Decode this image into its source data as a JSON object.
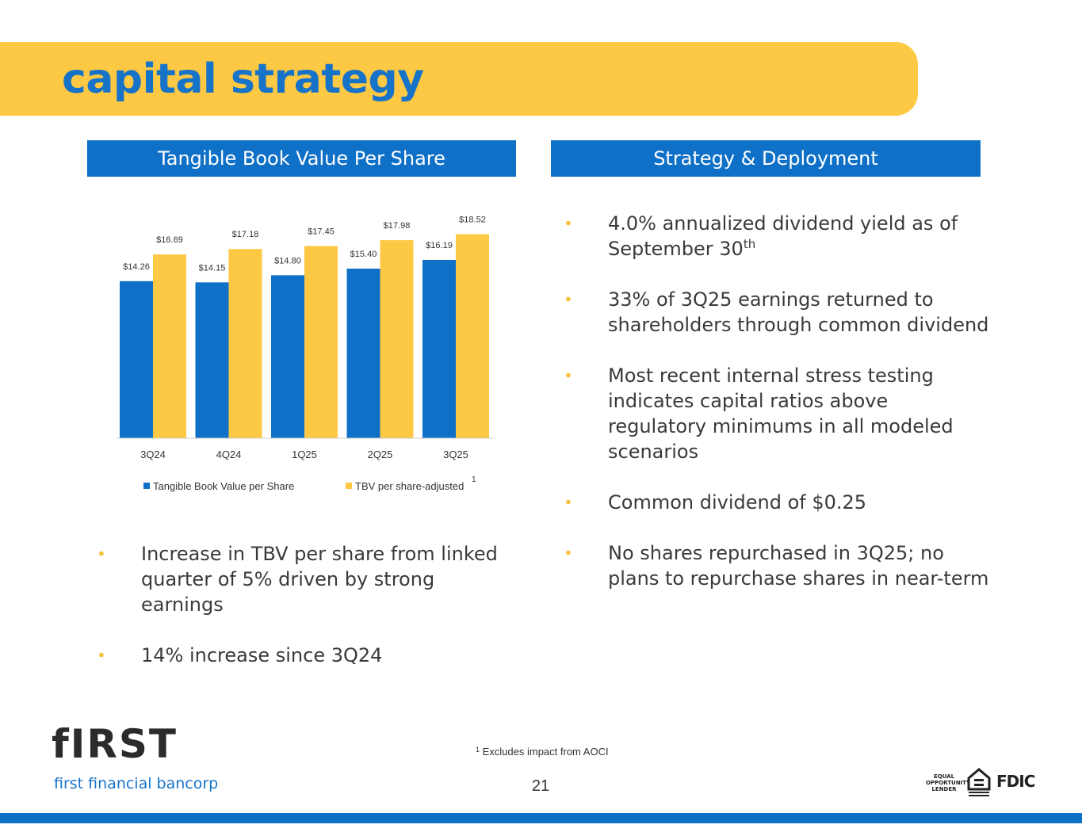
{
  "title": "capital strategy",
  "left_header": "Tangible Book Value Per Share",
  "right_header": "Strategy & Deployment",
  "colors": {
    "blue": "#0F70C8",
    "yellow": "#FDC843",
    "bullet": "#F5C242"
  },
  "chart_data": {
    "type": "bar",
    "categories": [
      "3Q24",
      "4Q24",
      "1Q25",
      "2Q25",
      "3Q25"
    ],
    "series": [
      {
        "name": "Tangible Book Value per Share",
        "values": [
          14.26,
          14.15,
          14.8,
          15.4,
          16.19
        ],
        "labels": [
          "$14.26",
          "$14.15",
          "$14.80",
          "$15.40",
          "$16.19"
        ],
        "color": "#0F70C8"
      },
      {
        "name": "TBV per share-adjusted",
        "values": [
          16.69,
          17.18,
          17.45,
          17.98,
          18.52
        ],
        "labels": [
          "$16.69",
          "$17.18",
          "$17.45",
          "$17.98",
          "$18.52"
        ],
        "color": "#FDC843"
      }
    ],
    "legend_note": "1",
    "legend_position": "bottom",
    "ylim": [
      0,
      19.5
    ],
    "grid": false
  },
  "right_bullets": [
    {
      "text": "4.0% annualized dividend yield as of September 30",
      "sup": "th"
    },
    {
      "text": "33% of 3Q25 earnings returned to shareholders through common dividend"
    },
    {
      "text": "Most recent internal stress testing indicates capital ratios above regulatory minimums in all modeled scenarios"
    },
    {
      "text": "Common dividend of $0.25"
    },
    {
      "text": "No shares repurchased in 3Q25; no plans to repurchase shares in near-term"
    }
  ],
  "left_bullets": [
    {
      "text": "Increase in TBV per share from linked quarter of 5% driven by strong earnings"
    },
    {
      "text": "14% increase since 3Q24"
    }
  ],
  "bullet_glyph": "•",
  "footnote": {
    "marker": "1",
    "text": " Excludes impact from AOCI"
  },
  "page_number": "21",
  "logo": {
    "wordmark": "fIRST",
    "subtitle": "first financial bancorp"
  },
  "badges": {
    "equal_opportunity": "EQUAL OPPORTUNITY LENDER",
    "equal_housing": "EQUAL HOUSING LENDER",
    "fdic": "FDIC"
  }
}
